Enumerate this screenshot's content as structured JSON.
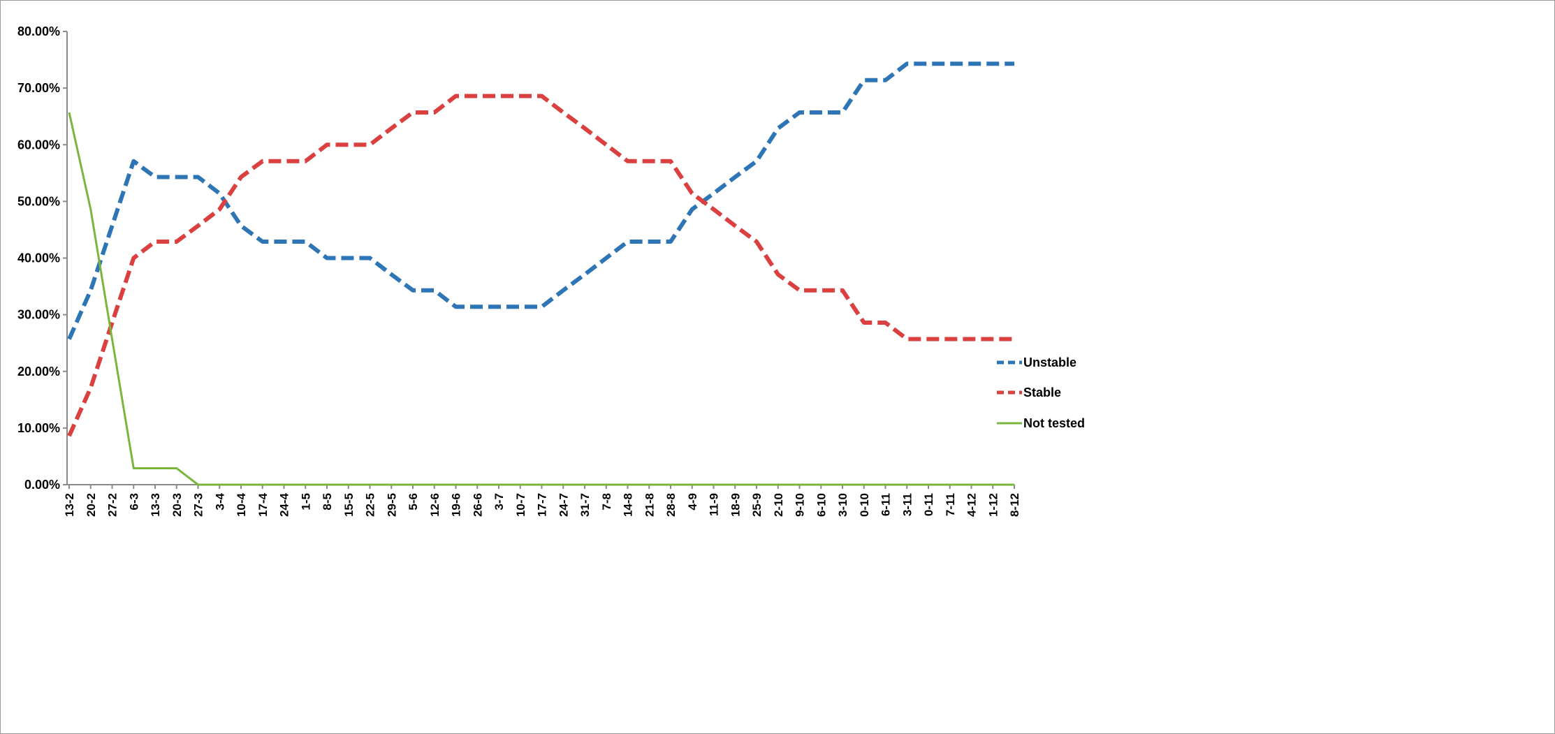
{
  "chart_data": {
    "type": "line",
    "title": "",
    "xlabel": "",
    "ylabel": "",
    "ylim": [
      0,
      0.8
    ],
    "y_ticks": [
      "0.00%",
      "10.00%",
      "20.00%",
      "30.00%",
      "40.00%",
      "50.00%",
      "60.00%",
      "70.00%",
      "80.00%"
    ],
    "grid": false,
    "legend_position": "right",
    "categories": [
      "13-2",
      "20-2",
      "27-2",
      "6-3",
      "13-3",
      "20-3",
      "27-3",
      "3-4",
      "10-4",
      "17-4",
      "24-4",
      "1-5",
      "8-5",
      "15-5",
      "22-5",
      "29-5",
      "5-6",
      "12-6",
      "19-6",
      "26-6",
      "3-7",
      "10-7",
      "17-7",
      "24-7",
      "31-7",
      "7-8",
      "14-8",
      "21-8",
      "28-8",
      "4-9",
      "11-9",
      "18-9",
      "25-9",
      "2-10",
      "9-10",
      "6-10",
      "3-10",
      "0-10",
      "6-11",
      "3-11",
      "0-11",
      "7-11",
      "4-12",
      "1-12",
      "8-12"
    ],
    "series": [
      {
        "name": "Unstable",
        "color": "#2e75b6",
        "style": "dashed",
        "values": [
          0.257,
          0.343,
          0.457,
          0.571,
          0.543,
          0.543,
          0.543,
          0.514,
          0.457,
          0.429,
          0.429,
          0.429,
          0.4,
          0.4,
          0.4,
          0.371,
          0.343,
          0.343,
          0.314,
          0.314,
          0.314,
          0.314,
          0.314,
          0.343,
          0.371,
          0.4,
          0.429,
          0.429,
          0.429,
          0.486,
          0.514,
          0.543,
          0.571,
          0.629,
          0.657,
          0.657,
          0.657,
          0.714,
          0.714,
          0.743,
          0.743,
          0.743,
          0.743,
          0.743,
          0.743
        ]
      },
      {
        "name": "Stable",
        "color": "#d9403f",
        "style": "dashed",
        "values": [
          0.086,
          0.171,
          0.286,
          0.4,
          0.429,
          0.429,
          0.457,
          0.486,
          0.543,
          0.571,
          0.571,
          0.571,
          0.6,
          0.6,
          0.6,
          0.629,
          0.657,
          0.657,
          0.686,
          0.686,
          0.686,
          0.686,
          0.686,
          0.657,
          0.629,
          0.6,
          0.571,
          0.571,
          0.571,
          0.514,
          0.486,
          0.457,
          0.429,
          0.371,
          0.343,
          0.343,
          0.343,
          0.286,
          0.286,
          0.257,
          0.257,
          0.257,
          0.257,
          0.257,
          0.257
        ]
      },
      {
        "name": "Not tested",
        "color": "#7ab53c",
        "style": "solid",
        "values": [
          0.657,
          0.486,
          0.257,
          0.029,
          0.029,
          0.029,
          0,
          0,
          0,
          0,
          0,
          0,
          0,
          0,
          0,
          0,
          0,
          0,
          0,
          0,
          0,
          0,
          0,
          0,
          0,
          0,
          0,
          0,
          0,
          0,
          0,
          0,
          0,
          0,
          0,
          0,
          0,
          0,
          0,
          0,
          0,
          0,
          0,
          0,
          0
        ]
      }
    ]
  }
}
